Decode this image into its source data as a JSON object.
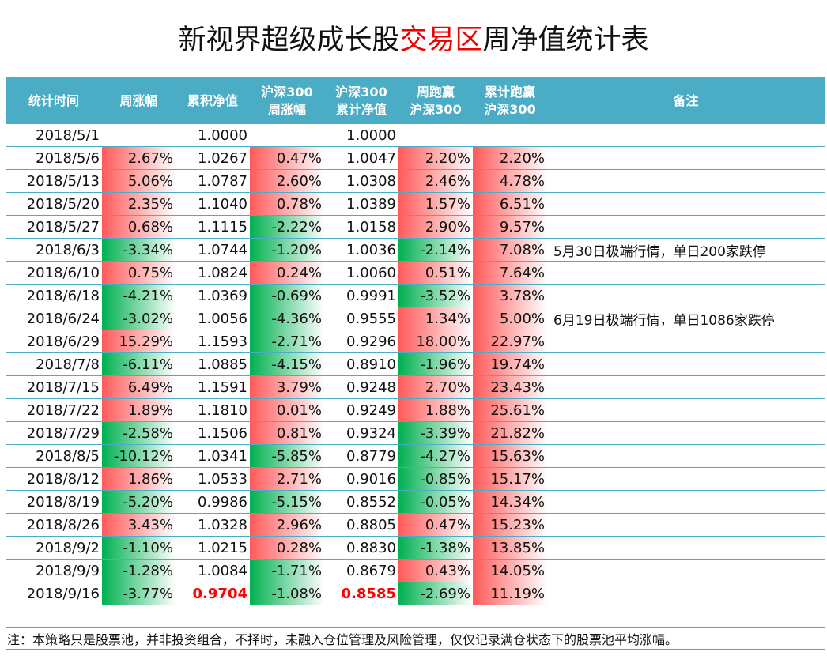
{
  "title": {
    "part1": "新视界超级成长股",
    "part2": "交易区",
    "part3": "周净值统计表",
    "accent": "#e00000"
  },
  "colors": {
    "header": "#4bacc6",
    "positive": "#ff5a5a",
    "negative": "#00b050"
  },
  "headers": [
    "统计时间",
    "周涨幅",
    "累积净值",
    "沪深300\n周涨幅",
    "沪深300\n累计净值",
    "周跑赢\n沪深300",
    "累计跑赢\n沪深300",
    "备注"
  ],
  "rows": [
    [
      "2018/5/1",
      "",
      "1.0000",
      "",
      "1.0000",
      "",
      "",
      ""
    ],
    [
      "2018/5/6",
      "2.67%",
      "1.0267",
      "0.47%",
      "1.0047",
      "2.20%",
      "2.20%",
      ""
    ],
    [
      "2018/5/13",
      "5.06%",
      "1.0787",
      "2.60%",
      "1.0308",
      "2.46%",
      "4.78%",
      ""
    ],
    [
      "2018/5/20",
      "2.35%",
      "1.1040",
      "0.78%",
      "1.0389",
      "1.57%",
      "6.51%",
      ""
    ],
    [
      "2018/5/27",
      "0.68%",
      "1.1115",
      "-2.22%",
      "1.0158",
      "2.90%",
      "9.57%",
      ""
    ],
    [
      "2018/6/3",
      "-3.34%",
      "1.0744",
      "-1.20%",
      "1.0036",
      "-2.14%",
      "7.08%",
      "5月30日极端行情，单日200家跌停"
    ],
    [
      "2018/6/10",
      "0.75%",
      "1.0824",
      "0.24%",
      "1.0060",
      "0.51%",
      "7.64%",
      ""
    ],
    [
      "2018/6/18",
      "-4.21%",
      "1.0369",
      "-0.69%",
      "0.9991",
      "-3.52%",
      "3.78%",
      ""
    ],
    [
      "2018/6/24",
      "-3.02%",
      "1.0056",
      "-4.36%",
      "0.9555",
      "1.34%",
      "5.00%",
      "6月19日极端行情，单日1086家跌停"
    ],
    [
      "2018/6/29",
      "15.29%",
      "1.1593",
      "-2.71%",
      "0.9296",
      "18.00%",
      "22.97%",
      ""
    ],
    [
      "2018/7/8",
      "-6.11%",
      "1.0885",
      "-4.15%",
      "0.8910",
      "-1.96%",
      "19.74%",
      ""
    ],
    [
      "2018/7/15",
      "6.49%",
      "1.1591",
      "3.79%",
      "0.9248",
      "2.70%",
      "23.43%",
      ""
    ],
    [
      "2018/7/22",
      "1.89%",
      "1.1810",
      "0.01%",
      "0.9249",
      "1.88%",
      "25.61%",
      ""
    ],
    [
      "2018/7/29",
      "-2.58%",
      "1.1506",
      "0.81%",
      "0.9324",
      "-3.39%",
      "21.82%",
      ""
    ],
    [
      "2018/8/5",
      "-10.12%",
      "1.0341",
      "-5.85%",
      "0.8779",
      "-4.27%",
      "15.63%",
      ""
    ],
    [
      "2018/8/12",
      "1.86%",
      "1.0533",
      "2.71%",
      "0.9016",
      "-0.85%",
      "15.17%",
      ""
    ],
    [
      "2018/8/19",
      "-5.20%",
      "0.9986",
      "-5.15%",
      "0.8552",
      "-0.05%",
      "14.34%",
      ""
    ],
    [
      "2018/8/26",
      "3.43%",
      "1.0328",
      "2.96%",
      "0.8805",
      "0.47%",
      "15.23%",
      ""
    ],
    [
      "2018/9/2",
      "-1.10%",
      "1.0215",
      "0.28%",
      "0.8830",
      "-1.38%",
      "13.85%",
      ""
    ],
    [
      "2018/9/9",
      "-1.28%",
      "1.0084",
      "-1.71%",
      "0.8679",
      "0.43%",
      "14.05%",
      ""
    ],
    [
      "2018/9/16",
      "-3.77%",
      "0.9704",
      "-1.08%",
      "0.8585",
      "-2.69%",
      "11.19%",
      ""
    ]
  ],
  "footnote": "注：本策略只是股票池，并非投资组合，不择时，未融入仓位管理及风险管理，仅仅记录满仓状态下的股票池平均涨幅。"
}
